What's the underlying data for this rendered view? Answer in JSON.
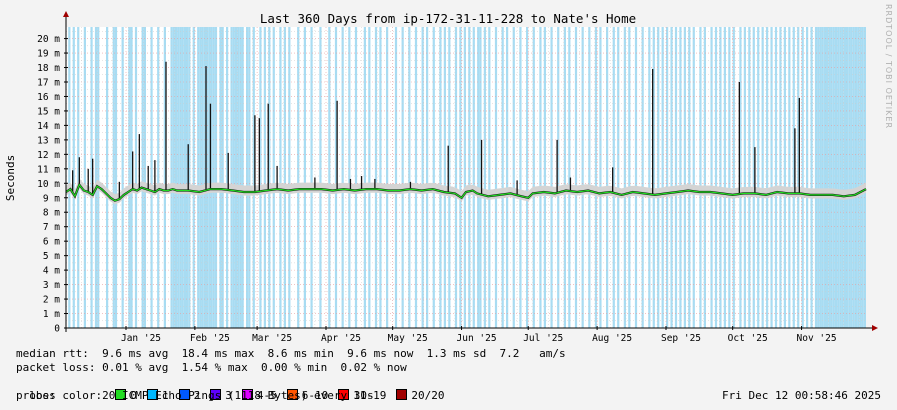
{
  "watermark": "RRDTOOL / TOBI OETIKER",
  "stats": {
    "median_rtt": "median rtt:  9.6 ms avg  18.4 ms max  8.6 ms min  9.6 ms now  1.3 ms sd  7.2   am/s",
    "packet_loss": "packet loss: 0.01 % avg  1.54 % max  0.00 % min  0.02 % now",
    "loss_color_label": "loss color:",
    "loss_colors": [
      {
        "label": "0",
        "color": "#22dd22"
      },
      {
        "label": "1",
        "color": "#00b8ff"
      },
      {
        "label": "2",
        "color": "#0059ff"
      },
      {
        "label": "3",
        "color": "#5e00ff"
      },
      {
        "label": "4-5",
        "color": "#dd00ff"
      },
      {
        "label": "6-10",
        "color": "#ff5500"
      },
      {
        "label": "11-19",
        "color": "#ff0000"
      },
      {
        "label": "20/20",
        "color": "#a00000"
      }
    ],
    "probe": "probe:       20 ICMP Echo Pings (1118 Bytes) every 30s",
    "timestamp": "Fri Dec 12 00:58:46 2025"
  },
  "chart_data": {
    "type": "line",
    "title": "Last 360 Days from ip-172-31-11-228 to Nate's Home",
    "ylabel": "Seconds",
    "ylim": [
      0,
      20.8
    ],
    "yticks": [
      {
        "v": 0,
        "label": "0"
      },
      {
        "v": 1,
        "label": "1 m"
      },
      {
        "v": 2,
        "label": "2 m"
      },
      {
        "v": 3,
        "label": "3 m"
      },
      {
        "v": 4,
        "label": "4 m"
      },
      {
        "v": 5,
        "label": "5 m"
      },
      {
        "v": 6,
        "label": "6 m"
      },
      {
        "v": 7,
        "label": "7 m"
      },
      {
        "v": 8,
        "label": "8 m"
      },
      {
        "v": 9,
        "label": "9 m"
      },
      {
        "v": 10,
        "label": "10 m"
      },
      {
        "v": 11,
        "label": "11 m"
      },
      {
        "v": 12,
        "label": "12 m"
      },
      {
        "v": 13,
        "label": "13 m"
      },
      {
        "v": 14,
        "label": "14 m"
      },
      {
        "v": 15,
        "label": "15 m"
      },
      {
        "v": 16,
        "label": "16 m"
      },
      {
        "v": 17,
        "label": "17 m"
      },
      {
        "v": 18,
        "label": "18 m"
      },
      {
        "v": 19,
        "label": "19 m"
      },
      {
        "v": 20,
        "label": "20 m"
      }
    ],
    "xlim": [
      0,
      360
    ],
    "xticks": [
      {
        "day": 27,
        "label": "Jan '25"
      },
      {
        "day": 58,
        "label": "Feb '25"
      },
      {
        "day": 86,
        "label": "Mar '25"
      },
      {
        "day": 117,
        "label": "Apr '25"
      },
      {
        "day": 147,
        "label": "May '25"
      },
      {
        "day": 178,
        "label": "Jun '25"
      },
      {
        "day": 208,
        "label": "Jul '25"
      },
      {
        "day": 239,
        "label": "Aug '25"
      },
      {
        "day": 270,
        "label": "Sep '25"
      },
      {
        "day": 300,
        "label": "Oct '25"
      },
      {
        "day": 331,
        "label": "Nov '25"
      }
    ],
    "grid": true,
    "median_series": {
      "x": [
        0,
        2,
        4,
        6,
        8,
        10,
        12,
        14,
        16,
        18,
        20,
        22,
        24,
        26,
        28,
        30,
        32,
        34,
        36,
        38,
        40,
        42,
        44,
        46,
        48,
        50,
        55,
        60,
        65,
        70,
        75,
        80,
        85,
        90,
        95,
        100,
        105,
        110,
        115,
        120,
        125,
        130,
        135,
        140,
        145,
        150,
        155,
        160,
        165,
        170,
        175,
        178,
        180,
        183,
        185,
        190,
        195,
        200,
        205,
        208,
        210,
        215,
        220,
        225,
        230,
        235,
        240,
        245,
        250,
        255,
        260,
        265,
        270,
        275,
        280,
        285,
        290,
        295,
        300,
        305,
        310,
        315,
        320,
        325,
        330,
        335,
        340,
        345,
        350,
        355,
        360
      ],
      "y": [
        9.4,
        9.6,
        9.1,
        9.9,
        9.5,
        9.4,
        9.2,
        9.8,
        9.6,
        9.3,
        9.0,
        8.8,
        8.9,
        9.2,
        9.4,
        9.6,
        9.5,
        9.7,
        9.6,
        9.5,
        9.4,
        9.6,
        9.5,
        9.5,
        9.6,
        9.5,
        9.5,
        9.4,
        9.6,
        9.6,
        9.5,
        9.4,
        9.4,
        9.5,
        9.6,
        9.5,
        9.6,
        9.6,
        9.6,
        9.5,
        9.6,
        9.5,
        9.6,
        9.6,
        9.5,
        9.5,
        9.6,
        9.5,
        9.6,
        9.4,
        9.3,
        9.0,
        9.4,
        9.5,
        9.3,
        9.1,
        9.2,
        9.3,
        9.1,
        9.0,
        9.3,
        9.4,
        9.3,
        9.5,
        9.4,
        9.5,
        9.3,
        9.4,
        9.2,
        9.4,
        9.3,
        9.2,
        9.3,
        9.4,
        9.5,
        9.4,
        9.4,
        9.3,
        9.2,
        9.3,
        9.3,
        9.2,
        9.4,
        9.3,
        9.3,
        9.2,
        9.2,
        9.2,
        9.1,
        9.2,
        9.6
      ]
    },
    "spikes": [
      {
        "x": 3,
        "y": 10.9
      },
      {
        "x": 6,
        "y": 11.8
      },
      {
        "x": 10,
        "y": 11.0
      },
      {
        "x": 12,
        "y": 11.7
      },
      {
        "x": 24,
        "y": 10.1
      },
      {
        "x": 30,
        "y": 12.2
      },
      {
        "x": 33,
        "y": 13.4
      },
      {
        "x": 37,
        "y": 11.2
      },
      {
        "x": 40,
        "y": 11.6
      },
      {
        "x": 45,
        "y": 18.4
      },
      {
        "x": 55,
        "y": 12.7
      },
      {
        "x": 63,
        "y": 18.1
      },
      {
        "x": 65,
        "y": 15.5
      },
      {
        "x": 73,
        "y": 12.1
      },
      {
        "x": 85,
        "y": 14.7
      },
      {
        "x": 87,
        "y": 14.5
      },
      {
        "x": 91,
        "y": 15.5
      },
      {
        "x": 95,
        "y": 11.2
      },
      {
        "x": 112,
        "y": 10.4
      },
      {
        "x": 122,
        "y": 15.7
      },
      {
        "x": 128,
        "y": 10.3
      },
      {
        "x": 133,
        "y": 10.5
      },
      {
        "x": 139,
        "y": 10.3
      },
      {
        "x": 155,
        "y": 10.1
      },
      {
        "x": 172,
        "y": 12.6
      },
      {
        "x": 187,
        "y": 13.0
      },
      {
        "x": 203,
        "y": 10.2
      },
      {
        "x": 221,
        "y": 13.0
      },
      {
        "x": 227,
        "y": 10.4
      },
      {
        "x": 246,
        "y": 11.1
      },
      {
        "x": 264,
        "y": 17.9
      },
      {
        "x": 303,
        "y": 17.0
      },
      {
        "x": 310,
        "y": 12.5
      },
      {
        "x": 328,
        "y": 13.8
      },
      {
        "x": 330,
        "y": 15.9
      }
    ],
    "loss_days": [
      1,
      3,
      5,
      8,
      11,
      13,
      14,
      18,
      21,
      22,
      25,
      28,
      29,
      31,
      34,
      35,
      38,
      41,
      44,
      47,
      48,
      49,
      50,
      51,
      52,
      53,
      54,
      55,
      57,
      59,
      60,
      61,
      62,
      63,
      64,
      65,
      66,
      67,
      69,
      70,
      72,
      74,
      75,
      76,
      77,
      78,
      79,
      81,
      82,
      84,
      87,
      89,
      91,
      93,
      96,
      98,
      100,
      104,
      107,
      110,
      114,
      118,
      121,
      124,
      127,
      130,
      134,
      136,
      139,
      141,
      144,
      148,
      151,
      154,
      157,
      160,
      162,
      165,
      168,
      170,
      172,
      175,
      177,
      179,
      181,
      183,
      185,
      186,
      188,
      190,
      193,
      196,
      198,
      201,
      204,
      207,
      210,
      213,
      215,
      218,
      221,
      224,
      226,
      229,
      232,
      235,
      238,
      240,
      243,
      246,
      248,
      251,
      253,
      256,
      259,
      262,
      264,
      266,
      268,
      270,
      272,
      274,
      276,
      278,
      280,
      282,
      285,
      287,
      290,
      292,
      294,
      296,
      298,
      300,
      303,
      305,
      307,
      309,
      311,
      313,
      315,
      317,
      319,
      321,
      323,
      325,
      327,
      329,
      331,
      333,
      335,
      337,
      338,
      339,
      340,
      341,
      342,
      343,
      344,
      345,
      346,
      347,
      348,
      349,
      350,
      351,
      352,
      353,
      354,
      355,
      356,
      357,
      358,
      359
    ]
  }
}
